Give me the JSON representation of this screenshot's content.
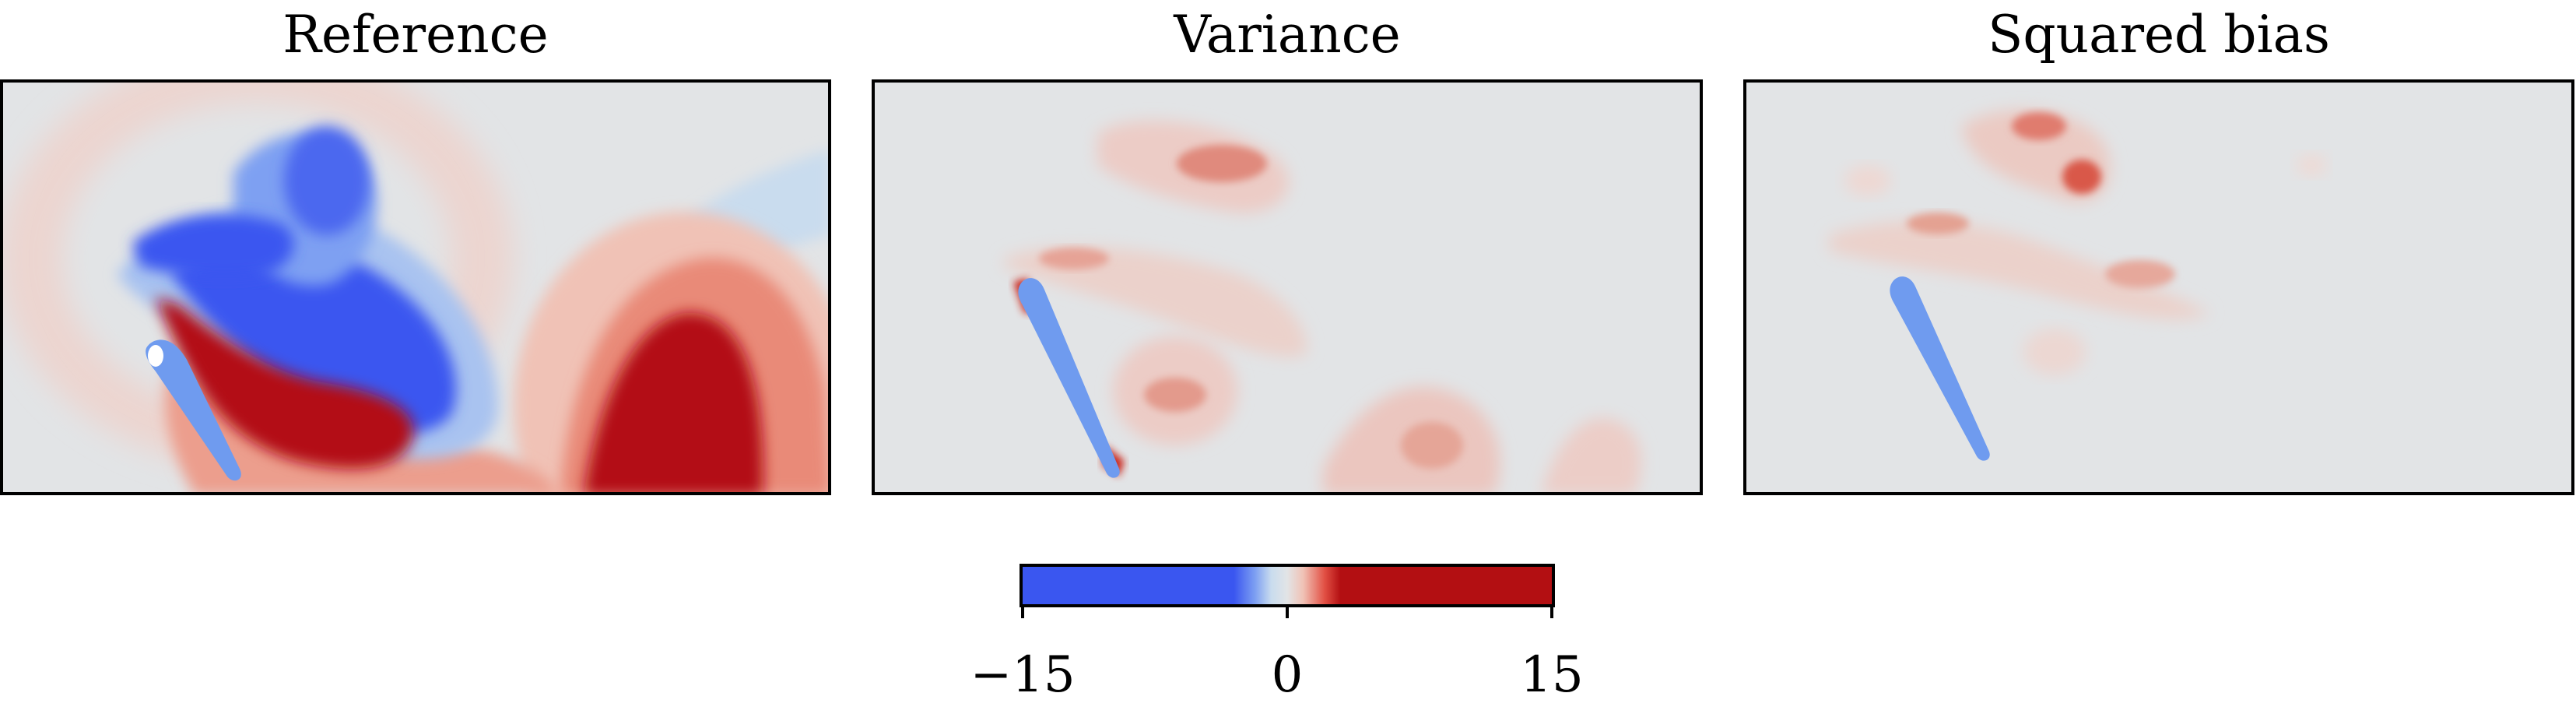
{
  "panels": [
    {
      "title": "Reference"
    },
    {
      "title": "Variance"
    },
    {
      "title": "Squared bias"
    }
  ],
  "colorbar": {
    "ticks": [
      "−15",
      "0",
      "15"
    ],
    "min": -15,
    "max": 15,
    "colormap": [
      "#3a56f0",
      "#7ea0f2",
      "#dfe6ee",
      "#e9b7ad",
      "#e25044",
      "#b30f12"
    ]
  },
  "chart_data": {
    "type": "heatmap",
    "subplots": [
      "Reference",
      "Variance",
      "Squared bias"
    ],
    "colorbar_range": [
      -15,
      15
    ],
    "colorbar_ticks": [
      -15,
      0,
      15
    ],
    "colors": {
      "background": "#e2e4e6",
      "negative": "#3a56f0",
      "positive": "#b30f12",
      "airfoil": "#6f9bef"
    }
  }
}
